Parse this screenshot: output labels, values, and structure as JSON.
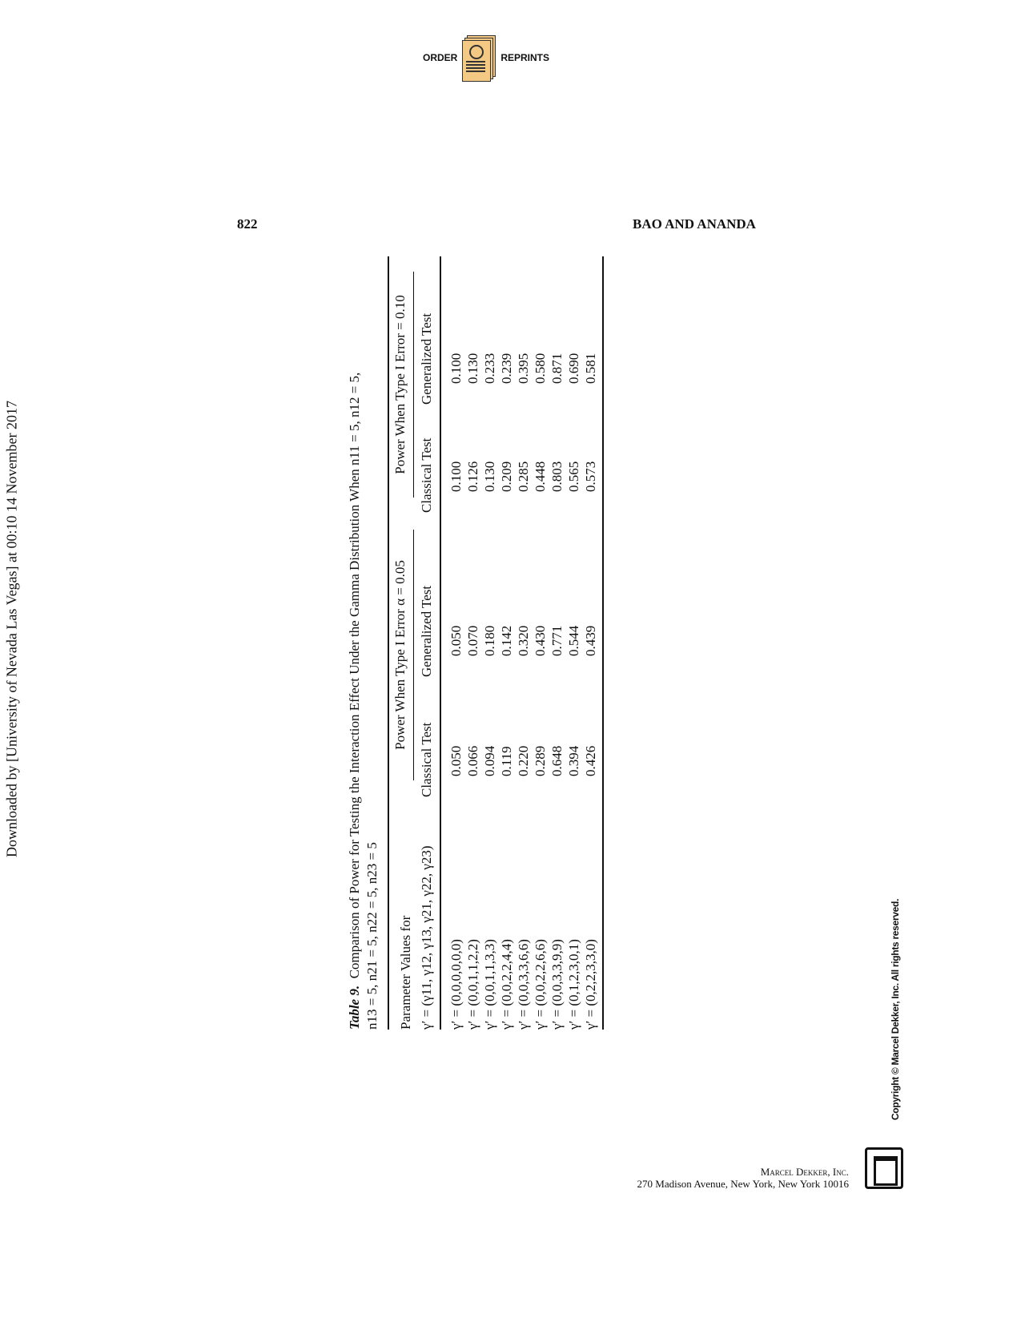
{
  "header": {
    "order_label": "ORDER",
    "reprints_label": "REPRINTS",
    "page_number": "822",
    "running_head": "BAO AND ANANDA"
  },
  "sidebar": {
    "download_note": "Downloaded by [University of Nevada Las Vegas] at 00:10 14 November 2017",
    "copyright": "Copyright © Marcel Dekker, Inc. All rights reserved."
  },
  "table": {
    "label": "Table 9.",
    "caption_line1": "Comparison of Power for Testing the Interaction Effect Under the Gamma Distribution When n11 = 5, n12 = 5,",
    "caption_line2": "n13 = 5, n21 = 5, n22 = 5, n23 = 5",
    "param_header_1": "Parameter Values for",
    "param_header_2": "γ′ = (γ11, γ12, γ13, γ21, γ22, γ23)",
    "group_headers": [
      "Power When Type I Error α = 0.05",
      "Power When Type I Error = 0.10"
    ],
    "sub_headers": [
      "Classical Test",
      "Generalized Test",
      "Classical Test",
      "Generalized Test"
    ],
    "rows": [
      {
        "param": "γ′ = (0,0,0,0,0,0)",
        "values": [
          "0.050",
          "0.050",
          "0.100",
          "0.100"
        ]
      },
      {
        "param": "γ′ = (0,0,1,1,2,2)",
        "values": [
          "0.066",
          "0.070",
          "0.126",
          "0.130"
        ]
      },
      {
        "param": "γ′ = (0,0,1,1,3,3)",
        "values": [
          "0.094",
          "0.180",
          "0.130",
          "0.233"
        ]
      },
      {
        "param": "γ′ = (0,0,2,2,4,4)",
        "values": [
          "0.119",
          "0.142",
          "0.209",
          "0.239"
        ]
      },
      {
        "param": "γ′ = (0,0,3,3,6,6)",
        "values": [
          "0.220",
          "0.320",
          "0.285",
          "0.395"
        ]
      },
      {
        "param": "γ′ = (0,0,2,2,6,6)",
        "values": [
          "0.289",
          "0.430",
          "0.448",
          "0.580"
        ]
      },
      {
        "param": "γ′ = (0,0,3,3,9,9)",
        "values": [
          "0.648",
          "0.771",
          "0.803",
          "0.871"
        ]
      },
      {
        "param": "γ′ = (0,1,2,3,0,1)",
        "values": [
          "0.394",
          "0.544",
          "0.565",
          "0.690"
        ]
      },
      {
        "param": "γ′ = (0,2,2,3,3,0)",
        "values": [
          "0.426",
          "0.439",
          "0.573",
          "0.581"
        ]
      }
    ]
  },
  "footer": {
    "publisher": "Marcel Dekker, Inc.",
    "address": "270 Madison Avenue, New York, New York 10016"
  }
}
